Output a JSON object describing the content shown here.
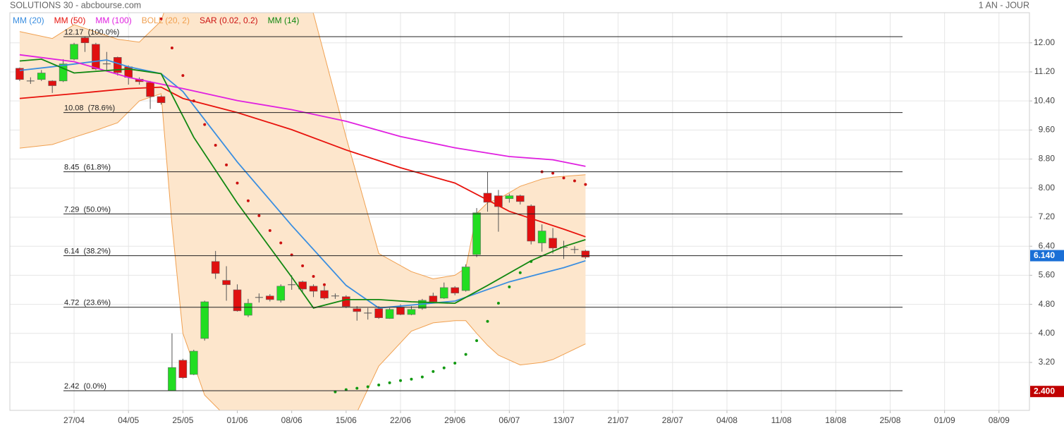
{
  "chart_data": {
    "type": "candlestick",
    "title": "SOLUTIONS 30 - abcbourse.com",
    "period": "1 AN - JOUR",
    "xlim": [
      -0.9,
      92.8
    ],
    "ylim": [
      1.88,
      12.83
    ],
    "xticks": [
      {
        "value": 5,
        "label": "27/04"
      },
      {
        "value": 10,
        "label": "04/05"
      },
      {
        "value": 15,
        "label": "25/05"
      },
      {
        "value": 20,
        "label": "01/06"
      },
      {
        "value": 25,
        "label": "08/06"
      },
      {
        "value": 30,
        "label": "15/06"
      },
      {
        "value": 35,
        "label": "22/06"
      },
      {
        "value": 40,
        "label": "29/06"
      },
      {
        "value": 45,
        "label": "06/07"
      },
      {
        "value": 50,
        "label": "13/07"
      },
      {
        "value": 55,
        "label": "21/07"
      },
      {
        "value": 60,
        "label": "28/07"
      },
      {
        "value": 65,
        "label": "04/08"
      },
      {
        "value": 70,
        "label": "11/08"
      },
      {
        "value": 75,
        "label": "18/08"
      },
      {
        "value": 80,
        "label": "25/08"
      },
      {
        "value": 85,
        "label": "01/09"
      },
      {
        "value": 90,
        "label": "08/09"
      }
    ],
    "yticks": [
      {
        "value": 12,
        "label": "12.00"
      },
      {
        "value": 11.2,
        "label": "11.20"
      },
      {
        "value": 10.4,
        "label": "10.40"
      },
      {
        "value": 9.6,
        "label": "9.60"
      },
      {
        "value": 8.8,
        "label": "8.80"
      },
      {
        "value": 8,
        "label": "8.00"
      },
      {
        "value": 7.2,
        "label": "7.20"
      },
      {
        "value": 6.4,
        "label": "6.40"
      },
      {
        "value": 5.6,
        "label": "5.60"
      },
      {
        "value": 4.8,
        "label": "4.80"
      },
      {
        "value": 4,
        "label": "4.00"
      },
      {
        "value": 3.2,
        "label": "3.20"
      }
    ],
    "grid": true,
    "up_color": "#22dd22",
    "down_color": "#e01010",
    "open": [
      11.3,
      10.95,
      10.99,
      10.95,
      10.95,
      11.55,
      12.14,
      11.96,
      11.42,
      11.6,
      11.34,
      11.0,
      10.91,
      10.52,
      2.42,
      3.26,
      2.87,
      3.86,
      5.98,
      5.46,
      5.2,
      4.5,
      4.99,
      5.03,
      4.91,
      5.34,
      5.42,
      5.3,
      5.18,
      5.03,
      5.01,
      4.68,
      4.56,
      4.68,
      4.41,
      4.72,
      4.52,
      4.69,
      5.03,
      4.97,
      5.26,
      5.18,
      6.17,
      7.86,
      7.79,
      7.71,
      7.79,
      7.51,
      6.49,
      6.62,
      6.37,
      6.31,
      6.27
    ],
    "high": [
      11.32,
      11.05,
      11.25,
      10.97,
      11.55,
      12.0,
      12.17,
      12.0,
      11.75,
      11.62,
      11.38,
      11.05,
      10.95,
      10.55,
      4.0,
      3.3,
      3.55,
      4.9,
      6.27,
      5.85,
      5.35,
      4.95,
      5.1,
      5.08,
      5.35,
      5.6,
      5.45,
      5.35,
      5.3,
      5.1,
      5.05,
      4.75,
      4.7,
      4.75,
      4.7,
      4.8,
      4.75,
      4.95,
      5.12,
      5.4,
      5.3,
      5.9,
      7.45,
      8.45,
      7.95,
      7.85,
      7.82,
      7.55,
      7.0,
      6.9,
      6.55,
      6.4,
      6.3
    ],
    "low": [
      10.95,
      10.87,
      10.95,
      10.62,
      10.92,
      11.52,
      11.75,
      11.25,
      11.25,
      11.1,
      10.85,
      10.85,
      10.18,
      10.3,
      2.42,
      2.75,
      2.85,
      3.8,
      5.5,
      4.9,
      4.6,
      4.45,
      4.85,
      4.88,
      4.85,
      5.2,
      5.15,
      5.0,
      4.93,
      4.95,
      4.7,
      4.35,
      4.38,
      4.4,
      4.4,
      4.5,
      4.5,
      4.65,
      4.85,
      4.95,
      5.05,
      5.15,
      6.1,
      7.35,
      6.8,
      7.6,
      7.55,
      6.45,
      6.25,
      6.2,
      6.05,
      6.2,
      6.05
    ],
    "close": [
      10.99,
      10.95,
      11.17,
      10.82,
      11.42,
      11.96,
      12.0,
      11.28,
      11.42,
      11.18,
      11.05,
      10.93,
      10.52,
      10.35,
      3.06,
      2.78,
      3.51,
      4.87,
      5.65,
      5.34,
      4.62,
      4.83,
      4.99,
      4.93,
      5.3,
      5.34,
      5.22,
      5.16,
      4.97,
      5.03,
      4.74,
      4.6,
      4.56,
      4.43,
      4.66,
      4.52,
      4.66,
      4.91,
      4.87,
      5.26,
      5.11,
      5.83,
      7.32,
      7.61,
      7.49,
      7.79,
      7.63,
      6.54,
      6.82,
      6.35,
      6.37,
      6.31,
      6.1
    ],
    "series": [
      {
        "name": "MM (20)",
        "kind": "line",
        "color": "#3a8ee0",
        "x": [
          0,
          3,
          8,
          10,
          13,
          15,
          20,
          25,
          30,
          33,
          36,
          40,
          45,
          50,
          52
        ],
        "values": [
          11.24,
          11.34,
          11.53,
          11.34,
          11.15,
          10.66,
          8.72,
          6.97,
          5.32,
          4.7,
          4.78,
          4.89,
          5.42,
          5.81,
          6.0
        ]
      },
      {
        "name": "MM (50)",
        "kind": "line",
        "color": "#e8120c",
        "x": [
          0,
          5,
          10,
          13,
          15,
          20,
          25,
          30,
          35,
          40,
          45,
          50,
          52
        ],
        "values": [
          10.47,
          10.6,
          10.74,
          10.78,
          10.47,
          10.08,
          9.61,
          9.05,
          8.56,
          8.14,
          7.36,
          6.87,
          6.66
        ]
      },
      {
        "name": "MM (100)",
        "kind": "line",
        "color": "#e020e0",
        "x": [
          0,
          5,
          10,
          15,
          20,
          25,
          30,
          35,
          40,
          45,
          49,
          52
        ],
        "values": [
          11.67,
          11.48,
          11.05,
          10.74,
          10.41,
          10.16,
          9.84,
          9.42,
          9.11,
          8.87,
          8.78,
          8.6
        ]
      },
      {
        "name": "BOLL (20, 2)",
        "kind": "band",
        "color": "#f0a050",
        "fill": "#fde6cc",
        "x": [
          0,
          3,
          5,
          7,
          9,
          11,
          13,
          14,
          15,
          17,
          19,
          21,
          23,
          25,
          27,
          30,
          33,
          36,
          38,
          40,
          41,
          42,
          43,
          44,
          46,
          48,
          49,
          52
        ],
        "upper": [
          12.31,
          12.12,
          12.5,
          12.3,
          12.1,
          12.02,
          12.6,
          13.5,
          14.5,
          15,
          15,
          15,
          14.8,
          14,
          12.8,
          9.4,
          6.2,
          5.7,
          5.5,
          5.6,
          5.8,
          7.3,
          7.6,
          7.7,
          8.05,
          8.25,
          8.3,
          8.37
        ],
        "lower": [
          9.1,
          9.2,
          9.4,
          9.59,
          9.8,
          10.4,
          10.6,
          7.0,
          4.0,
          2.3,
          1.7,
          1.3,
          1.0,
          0.9,
          0.9,
          1.2,
          3.1,
          4.06,
          4.29,
          4.35,
          4.35,
          4.0,
          3.67,
          3.4,
          3.13,
          3.2,
          3.28,
          3.71
        ]
      },
      {
        "name": "SAR (0.02, 0.2)",
        "kind": "dots",
        "color": "#cc1111",
        "below_color": "#119911",
        "x": [
          13,
          14,
          15,
          16,
          17,
          18,
          19,
          20,
          21,
          22,
          23,
          24,
          25,
          26,
          27,
          28,
          29,
          30,
          31,
          32,
          33,
          34,
          35,
          36,
          37,
          38,
          39,
          40,
          41,
          42,
          43,
          44,
          45,
          46,
          47,
          48,
          49,
          50,
          51,
          52
        ],
        "values": [
          12.66,
          11.86,
          11.1,
          10.4,
          9.75,
          9.18,
          8.64,
          8.14,
          7.65,
          7.24,
          6.83,
          6.49,
          6.16,
          5.86,
          5.57,
          5.34,
          2.39,
          2.45,
          2.49,
          2.53,
          2.58,
          2.64,
          2.7,
          2.74,
          2.8,
          2.95,
          3.05,
          3.18,
          3.42,
          3.8,
          4.33,
          4.83,
          5.28,
          5.67,
          5.98,
          8.45,
          8.41,
          8.28,
          8.2,
          8.1
        ]
      },
      {
        "name": "MM (14)",
        "kind": "line",
        "color": "#118811",
        "x": [
          0,
          2,
          5,
          10,
          13,
          16,
          20,
          25,
          27,
          30,
          33,
          36,
          40,
          43,
          47,
          50,
          52
        ],
        "values": [
          11.5,
          11.55,
          11.17,
          11.28,
          11.15,
          9.4,
          7.59,
          5.55,
          4.7,
          4.93,
          4.93,
          4.87,
          4.83,
          5.32,
          6.0,
          6.39,
          6.58
        ]
      }
    ],
    "fib_levels": [
      {
        "value": 12.17,
        "label": "12.17  (100.0%)"
      },
      {
        "value": 10.08,
        "label": "10.08  (78.6%)"
      },
      {
        "value": 8.45,
        "label": "8.45  (61.8%)"
      },
      {
        "value": 7.29,
        "label": "7.29  (50.0%)"
      },
      {
        "value": 6.14,
        "label": "6.14  (38.2%)"
      },
      {
        "value": 4.72,
        "label": "4.72  (23.6%)"
      },
      {
        "value": 2.42,
        "label": "2.42  (0.0%)"
      }
    ],
    "price_labels": [
      {
        "value": 6.14,
        "label": "6.140",
        "color": "#1a6fd6"
      },
      {
        "value": 2.4,
        "label": "2.400",
        "color": "#c00000"
      }
    ]
  }
}
